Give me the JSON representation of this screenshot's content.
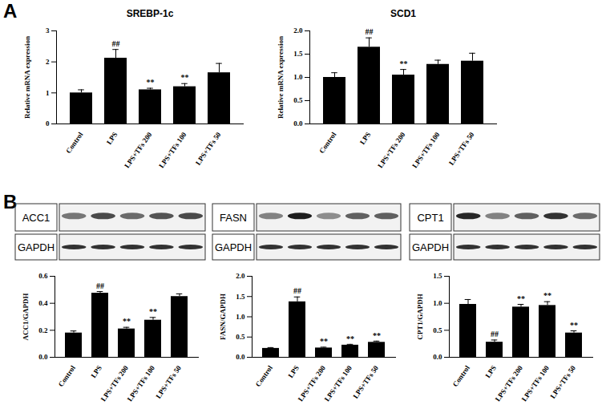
{
  "panel_labels": [
    "A",
    "B"
  ],
  "blots": [
    {
      "protein": "ACC1",
      "loading": "GAPDH"
    },
    {
      "protein": "FASN",
      "loading": "GAPDH"
    },
    {
      "protein": "CPT1",
      "loading": "GAPDH"
    }
  ],
  "chart_data": [
    {
      "type": "bar",
      "title": "SREBP-1c",
      "y_label": "Relative mRNA expression",
      "categories": [
        "Control",
        "LPS",
        "LPS+TFs 200",
        "LPS+TFs 100",
        "LPS+TFs 50"
      ],
      "values": [
        1.0,
        2.12,
        1.1,
        1.2,
        1.65
      ],
      "errors": [
        0.1,
        0.28,
        0.05,
        0.1,
        0.3
      ],
      "annotations": [
        null,
        "##",
        "**",
        "**",
        null
      ],
      "color": "#000000",
      "ylim": [
        0,
        3
      ],
      "yticks": [
        0,
        1,
        2,
        3
      ]
    },
    {
      "type": "bar",
      "title": "SCD1",
      "y_label": "Relative mRNA expression",
      "categories": [
        "Control",
        "LPS",
        "LPS+TFs 200",
        "LPS+TFs 100",
        "LPS+TFs 50"
      ],
      "values": [
        1.0,
        1.65,
        1.05,
        1.28,
        1.35
      ],
      "errors": [
        0.1,
        0.2,
        0.12,
        0.09,
        0.17
      ],
      "annotations": [
        null,
        "##",
        "**",
        null,
        null
      ],
      "color": "#000000",
      "ylim": [
        0,
        2
      ],
      "yticks": [
        {
          "value": 0,
          "label": "0.0"
        },
        0.5,
        {
          "value": 1,
          "label": "1.0"
        },
        1.5,
        {
          "value": 2,
          "label": "2.0"
        }
      ]
    },
    {
      "type": "bar",
      "y_label": "ACC1/GAPDH",
      "categories": [
        "Control",
        "LPS",
        "LPS+TFs 200",
        "LPS+TFs 100",
        "LPS+TFs 50"
      ],
      "values": [
        0.18,
        0.475,
        0.21,
        0.275,
        0.45
      ],
      "errors": [
        0.015,
        0.012,
        0.012,
        0.02,
        0.02
      ],
      "annotations": [
        null,
        "##",
        "**",
        "**",
        null
      ],
      "color": "#000000",
      "ylim": [
        0,
        0.6
      ],
      "yticks": [
        {
          "value": 0,
          "label": "0.0"
        },
        0.2,
        0.4,
        0.6
      ]
    },
    {
      "type": "bar",
      "y_label": "FASN/GAPDH",
      "categories": [
        "Control",
        "LPS",
        "LPS+TFs 200",
        "LPS+TFs 100",
        "LPS+TFs 50"
      ],
      "values": [
        0.22,
        1.37,
        0.23,
        0.3,
        0.37
      ],
      "errors": [
        0.02,
        0.12,
        0.02,
        0.02,
        0.03
      ],
      "annotations": [
        null,
        "##",
        "**",
        "**",
        "**"
      ],
      "color": "#000000",
      "ylim": [
        0,
        2
      ],
      "yticks": [
        {
          "value": 0,
          "label": "0.0"
        },
        0.5,
        {
          "value": 1,
          "label": "1.0"
        },
        1.5,
        {
          "value": 2,
          "label": "2.0"
        }
      ]
    },
    {
      "type": "bar",
      "y_label": "CPT1/GAPDH",
      "categories": [
        "Control",
        "LPS",
        "LPS+TFs 200",
        "LPS+TFs 100",
        "LPS+TFs 50"
      ],
      "values": [
        0.98,
        0.28,
        0.93,
        0.96,
        0.45
      ],
      "errors": [
        0.09,
        0.04,
        0.05,
        0.07,
        0.04
      ],
      "annotations": [
        null,
        "##",
        "**",
        "**",
        "**"
      ],
      "color": "#000000",
      "ylim": [
        0,
        1.5
      ],
      "yticks": [
        {
          "value": 0,
          "label": "0.0"
        },
        0.5,
        {
          "value": 1,
          "label": "1.0"
        },
        1.5
      ]
    }
  ]
}
